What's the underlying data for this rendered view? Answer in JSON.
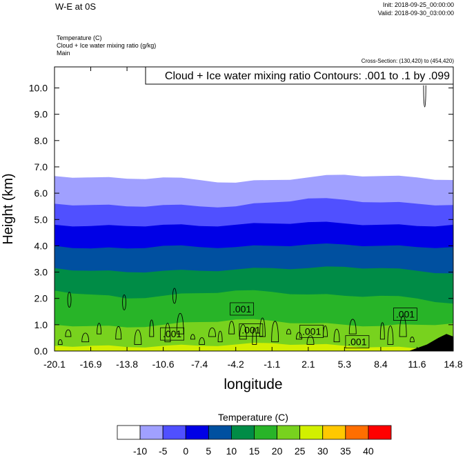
{
  "header": {
    "title": "W-E at 0S",
    "init": "Init: 2018-09-25_00:00:00",
    "valid": "Valid: 2018-09-30_03:00:00",
    "field_lines": [
      "Temperature   (C)",
      "Cloud + Ice water mixing ratio   (g/kg)",
      "Main"
    ],
    "cross_section": "Cross-Section: (130,420) to (454,420)"
  },
  "chart_data": {
    "type": "contour",
    "title": "Cloud + Ice water mixing ratio Contours: .001 to .1 by .099",
    "xlabel": "longitude",
    "ylabel": "Height (km)",
    "xlim": [
      -20.1,
      14.8
    ],
    "ylim": [
      0.0,
      10.8
    ],
    "x_ticks": [
      "-20.1",
      "-16.9",
      "-13.8",
      "-10.6",
      "-7.4",
      "-4.2",
      "-1.1",
      "2.1",
      "5.3",
      "8.4",
      "11.6",
      "14.8"
    ],
    "y_ticks": [
      "0.0",
      "1.0",
      "2.0",
      "3.0",
      "4.0",
      "5.0",
      "6.0",
      "7.0",
      "8.0",
      "9.0",
      "10.0"
    ],
    "temperature_colorbar": {
      "label": "Temperature  (C)",
      "levels": [
        "-10",
        "-5",
        "0",
        "5",
        "10",
        "15",
        "20",
        "25",
        "30",
        "35",
        "40"
      ],
      "colors": [
        "#ffffff",
        "#a0a0ff",
        "#5050ff",
        "#0000e6",
        "#0050a0",
        "#008c46",
        "#28b428",
        "#78d21e",
        "#d2f000",
        "#ffc800",
        "#ff6e00",
        "#ff0000"
      ]
    },
    "temperature_band_tops_km": [
      {
        "level": "-10",
        "color": "#a0a0ff",
        "top": [
          6.65,
          6.6,
          6.55,
          6.6,
          6.5,
          6.4,
          6.5,
          6.6,
          6.7,
          6.65,
          6.6,
          6.5
        ]
      },
      {
        "level": "-5",
        "color": "#5050ff",
        "top": [
          5.6,
          5.55,
          5.5,
          5.55,
          5.5,
          5.5,
          5.65,
          5.8,
          5.75,
          5.65,
          5.6,
          5.55
        ]
      },
      {
        "level": "0",
        "color": "#0000e6",
        "top": [
          4.8,
          4.75,
          4.75,
          4.8,
          4.75,
          4.8,
          4.85,
          4.9,
          4.85,
          4.8,
          4.75,
          4.8
        ]
      },
      {
        "level": "5",
        "color": "#0050a0",
        "top": [
          4.0,
          3.9,
          3.9,
          4.0,
          3.95,
          3.95,
          4.0,
          4.05,
          4.05,
          4.0,
          3.95,
          3.95
        ]
      },
      {
        "level": "10",
        "color": "#008c46",
        "top": [
          3.15,
          3.05,
          3.0,
          3.05,
          3.05,
          3.1,
          3.15,
          3.15,
          3.2,
          3.15,
          3.05,
          2.95
        ]
      },
      {
        "level": "15",
        "color": "#28b428",
        "top": [
          2.3,
          2.15,
          2.0,
          2.1,
          2.2,
          2.3,
          2.25,
          2.15,
          2.1,
          2.1,
          2.0,
          1.8
        ]
      },
      {
        "level": "20",
        "color": "#78d21e",
        "top": [
          1.0,
          0.95,
          0.9,
          1.0,
          1.1,
          1.2,
          1.15,
          1.05,
          1.0,
          0.95,
          1.0,
          1.05
        ]
      },
      {
        "level": "25",
        "color": "#d2f000",
        "top": [
          0.2,
          0.2,
          0.15,
          0.2,
          0.2,
          0.25,
          0.3,
          0.25,
          0.2,
          0.15,
          0.1,
          0.1
        ]
      }
    ],
    "terrain_km": {
      "x": [
        10.9,
        12.5,
        13.5,
        14.2,
        14.8
      ],
      "y": [
        0.0,
        0.25,
        0.5,
        0.65,
        0.55
      ]
    },
    "contour_labels": [
      {
        "text": ".001",
        "x": -9.8,
        "y": 0.65
      },
      {
        "text": ".001",
        "x": -3.7,
        "y": 1.6
      },
      {
        "text": ".001",
        "x": -2.9,
        "y": 0.8
      },
      {
        "text": ".001",
        "x": 2.4,
        "y": 0.75
      },
      {
        "text": ".001",
        "x": 6.4,
        "y": 0.35
      },
      {
        "text": ".001",
        "x": 10.6,
        "y": 1.4
      }
    ]
  }
}
